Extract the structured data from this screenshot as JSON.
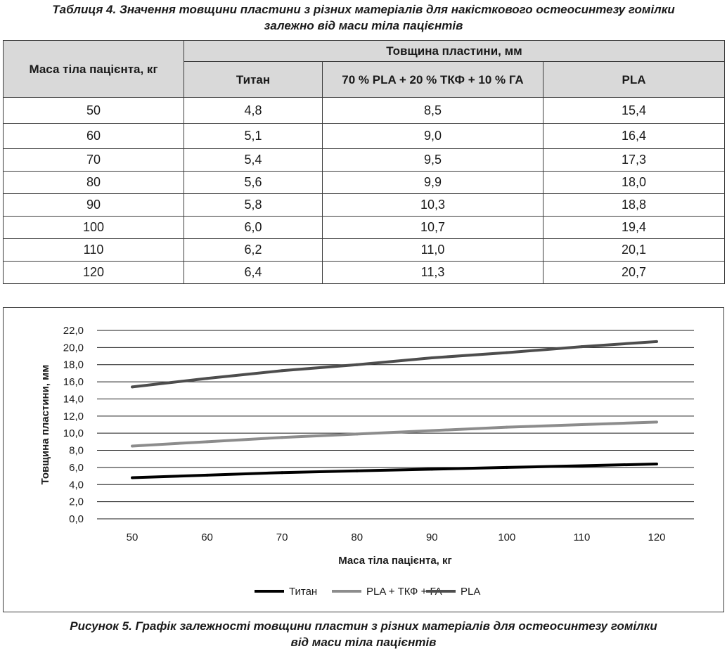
{
  "table_caption": {
    "line1": "Таблиця 4. Значення товщини пластини з різних матеріалів для накісткового остеосинтезу гомілки",
    "line2": "залежно від маси тіла пацієнтів"
  },
  "table": {
    "header_mass": "Маса тіла пацієнта, кг",
    "header_group": "Товщина пластини, мм",
    "columns": [
      "Титан",
      "70 % PLA + 20 % ТКФ + 10 % ГА",
      "PLA"
    ],
    "rows": [
      [
        "50",
        "4,8",
        "8,5",
        "15,4"
      ],
      [
        "60",
        "5,1",
        "9,0",
        "16,4"
      ],
      [
        "70",
        "5,4",
        "9,5",
        "17,3"
      ],
      [
        "80",
        "5,6",
        "9,9",
        "18,0"
      ],
      [
        "90",
        "5,8",
        "10,3",
        "18,8"
      ],
      [
        "100",
        "6,0",
        "10,7",
        "19,4"
      ],
      [
        "110",
        "6,2",
        "11,0",
        "20,1"
      ],
      [
        "120",
        "6,4",
        "11,3",
        "20,7"
      ]
    ]
  },
  "chart_data": {
    "type": "line",
    "x": [
      50,
      60,
      70,
      80,
      90,
      100,
      110,
      120
    ],
    "x_tick_labels": [
      "50",
      "60",
      "70",
      "80",
      "90",
      "100",
      "110",
      "120"
    ],
    "series": [
      {
        "name": "Титан",
        "values": [
          4.8,
          5.1,
          5.4,
          5.6,
          5.8,
          6.0,
          6.2,
          6.4
        ],
        "color": "#000000"
      },
      {
        "name": "PLA + ТКФ + ГА",
        "values": [
          8.5,
          9.0,
          9.5,
          9.9,
          10.3,
          10.7,
          11.0,
          11.3
        ],
        "color": "#8c8c8c"
      },
      {
        "name": "PLA",
        "values": [
          15.4,
          16.4,
          17.3,
          18.0,
          18.8,
          19.4,
          20.1,
          20.7
        ],
        "color": "#4d4d4d"
      }
    ],
    "y_ticks": [
      0,
      2,
      4,
      6,
      8,
      10,
      12,
      14,
      16,
      18,
      20,
      22
    ],
    "y_tick_labels": [
      "0,0",
      "2,0",
      "4,0",
      "6,0",
      "8,0",
      "10,0",
      "12,0",
      "14,0",
      "16,0",
      "18,0",
      "20,0",
      "22,0"
    ],
    "ylim": [
      0,
      22
    ],
    "xlim": [
      50,
      120
    ],
    "xlabel": "Маса тіла пацієнта, кг",
    "ylabel": "Товщина пластини, мм",
    "grid": "horizontal",
    "legend": "bottom"
  },
  "figure_caption": {
    "line1": "Рисунок 5. Графік залежності товщини пластин з різних матеріалів для остеосинтезу гомілки",
    "line2": "від маси тіла пацієнтів"
  }
}
